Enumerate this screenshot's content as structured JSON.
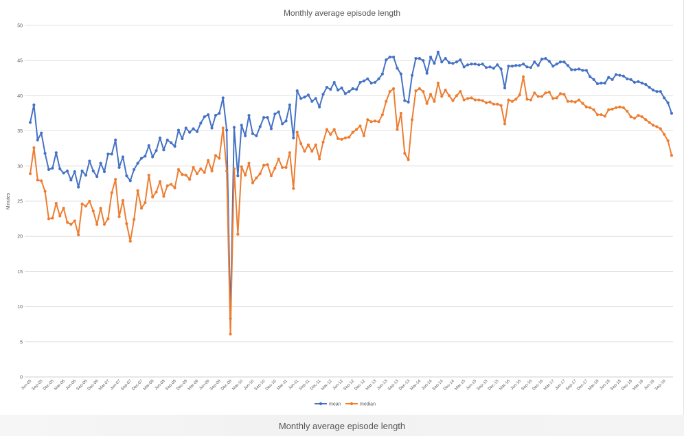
{
  "caption": "Monthly average episode length",
  "colors": {
    "mean": "#4472c4",
    "median": "#ed7d31",
    "grid": "#d9d9d9",
    "text": "#595959"
  },
  "chart_data": {
    "type": "line",
    "title": "Monthly average episode length",
    "xlabel": "",
    "ylabel": "Minutes",
    "ylim": [
      0,
      50
    ],
    "yticks": [
      0,
      5,
      10,
      15,
      20,
      25,
      30,
      35,
      40,
      45,
      50
    ],
    "grid": true,
    "legend": "bottom",
    "x_start": "Jun-05",
    "x_labels": [
      "Jun-05",
      "Sep-05",
      "Dec-05",
      "Mar-06",
      "Jun-06",
      "Sep-06",
      "Dec-06",
      "Mar-07",
      "Jun-07",
      "Sep-07",
      "Dec-07",
      "Mar-08",
      "Jun-08",
      "Sep-08",
      "Dec-08",
      "Mar-09",
      "Jun-09",
      "Sep-09",
      "Dec-09",
      "Mar-10",
      "Jun-10",
      "Sep-10",
      "Dec-10",
      "Mar-11",
      "Jun-11",
      "Sep-11",
      "Dec-11",
      "Mar-12",
      "Jun-12",
      "Sep-12",
      "Dec-12",
      "Mar-13",
      "Jun-13",
      "Sep-13",
      "Dec-13",
      "Mar-14",
      "Jun-14",
      "Sep-14",
      "Dec-14",
      "Mar-15",
      "Jun-15",
      "Sep-15",
      "Dec-15",
      "Mar-16",
      "Jun-16",
      "Sep-16",
      "Dec-16",
      "Mar-17",
      "Jun-17",
      "Sep-17",
      "Dec-17",
      "Mar-18",
      "Jun-18",
      "Sep-18",
      "Dec-18",
      "Mar-19",
      "Jun-19",
      "Sep-19"
    ],
    "series": [
      {
        "name": "mean",
        "values": [
          36.2,
          38.7,
          33.7,
          34.7,
          31.8,
          29.5,
          29.7,
          31.9,
          29.6,
          29.0,
          29.3,
          28.0,
          29.2,
          27.0,
          29.3,
          28.7,
          30.7,
          29.3,
          28.5,
          30.4,
          29.2,
          31.7,
          31.7,
          33.7,
          29.8,
          31.3,
          28.6,
          27.9,
          29.5,
          30.4,
          31.1,
          31.4,
          32.9,
          31.3,
          32.2,
          34.0,
          32.3,
          33.7,
          33.3,
          32.8,
          35.1,
          33.9,
          35.4,
          34.8,
          35.3,
          34.9,
          36.1,
          37.0,
          37.3,
          35.4,
          37.2,
          37.5,
          39.7,
          35.1,
          8.3,
          35.5,
          28.6,
          35.8,
          34.3,
          37.2,
          34.6,
          34.3,
          35.6,
          36.9,
          36.9,
          35.3,
          37.4,
          37.7,
          36.0,
          36.4,
          38.7,
          34.0,
          40.7,
          39.6,
          39.8,
          40.1,
          39.2,
          39.6,
          38.4,
          40.2,
          41.2,
          40.9,
          41.9,
          40.8,
          41.1,
          40.3,
          40.6,
          41.0,
          40.9,
          41.9,
          42.1,
          42.4,
          41.8,
          41.9,
          42.4,
          43.1,
          45.1,
          45.5,
          45.5,
          43.9,
          43.1,
          39.3,
          39.1,
          42.9,
          45.3,
          45.3,
          45.0,
          43.2,
          45.5,
          44.6,
          46.2,
          44.8,
          45.3,
          44.7,
          44.6,
          44.8,
          45.1,
          44.1,
          44.4,
          44.5,
          44.5,
          44.4,
          44.5,
          44.0,
          44.1,
          43.9,
          44.4,
          43.8,
          41.1,
          44.2,
          44.2,
          44.3,
          44.3,
          44.5,
          44.1,
          44.0,
          44.8,
          44.3,
          45.2,
          45.3,
          44.9,
          44.2,
          44.5,
          44.8,
          44.8,
          44.3,
          43.7,
          43.7,
          43.8,
          43.6,
          43.6,
          42.7,
          42.3,
          41.7,
          41.8,
          41.8,
          42.6,
          42.3,
          43.0,
          42.9,
          42.8,
          42.4,
          42.3,
          41.9,
          42.0,
          41.8,
          41.6,
          41.2,
          40.8,
          40.6,
          40.6,
          39.7,
          39.0,
          37.5
        ]
      },
      {
        "name": "median",
        "values": [
          28.9,
          32.6,
          28.0,
          27.9,
          26.4,
          22.5,
          22.6,
          24.7,
          22.9,
          24.0,
          22.0,
          21.7,
          22.2,
          20.2,
          24.6,
          24.3,
          25.0,
          23.6,
          21.7,
          24.0,
          21.7,
          22.5,
          26.2,
          28.1,
          22.8,
          25.1,
          21.8,
          19.3,
          22.4,
          26.5,
          24.0,
          24.8,
          28.7,
          25.6,
          26.3,
          27.8,
          25.7,
          27.2,
          27.4,
          26.9,
          29.5,
          28.8,
          28.7,
          28.1,
          29.8,
          28.9,
          29.6,
          29.1,
          30.8,
          29.3,
          31.5,
          31.1,
          35.4,
          29.3,
          6.1,
          29.6,
          20.3,
          29.9,
          28.7,
          30.4,
          27.6,
          28.3,
          28.9,
          30.1,
          30.2,
          28.6,
          29.7,
          31.0,
          29.8,
          29.8,
          31.9,
          26.8,
          34.8,
          33.2,
          32.1,
          33.0,
          32.1,
          33.0,
          31.0,
          33.4,
          35.2,
          34.5,
          35.2,
          33.9,
          33.8,
          34.0,
          34.1,
          34.8,
          35.2,
          35.7,
          34.3,
          36.6,
          36.3,
          36.4,
          36.3,
          37.3,
          39.2,
          40.6,
          41.0,
          35.2,
          37.5,
          31.8,
          30.9,
          36.6,
          40.7,
          41.0,
          40.6,
          38.9,
          40.2,
          39.2,
          41.8,
          39.9,
          40.8,
          40.0,
          39.3,
          40.0,
          40.6,
          39.4,
          39.6,
          39.7,
          39.4,
          39.4,
          39.3,
          39.0,
          39.1,
          38.8,
          38.8,
          38.6,
          36.0,
          39.4,
          39.2,
          39.5,
          40.1,
          42.7,
          39.5,
          39.4,
          40.4,
          39.9,
          39.9,
          40.4,
          40.5,
          39.6,
          39.7,
          40.3,
          40.2,
          39.2,
          39.2,
          39.1,
          39.4,
          38.9,
          38.4,
          38.3,
          38.0,
          37.3,
          37.3,
          37.1,
          38.0,
          38.1,
          38.3,
          38.4,
          38.3,
          37.8,
          37.0,
          36.8,
          37.2,
          37.0,
          36.6,
          36.2,
          35.8,
          35.6,
          35.3,
          34.5,
          33.6,
          31.5
        ]
      }
    ]
  }
}
